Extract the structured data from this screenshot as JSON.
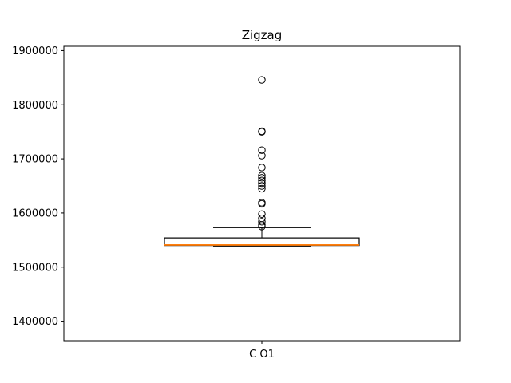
{
  "chart_data": {
    "type": "box",
    "title": "Zigzag",
    "xlabel": "",
    "ylabel": "",
    "categories": [
      "C O1"
    ],
    "ylim": [
      1364000,
      1908000
    ],
    "yticks": [
      1400000,
      1500000,
      1600000,
      1700000,
      1800000,
      1900000
    ],
    "ytick_labels": [
      "1400000",
      "1500000",
      "1600000",
      "1700000",
      "1800000",
      "1900000"
    ],
    "box": {
      "whisker_low": 1539000,
      "q1": 1540000,
      "median": 1541000,
      "q3": 1554000,
      "whisker_high": 1573000
    },
    "outliers": [
      1846000,
      1751000,
      1750000,
      1716000,
      1706000,
      1684000,
      1669000,
      1665000,
      1660000,
      1655000,
      1650000,
      1645000,
      1619000,
      1617000,
      1598000,
      1590000,
      1584000,
      1578000,
      1575000
    ],
    "colors": {
      "median": "#ff7f0e",
      "box": "#000000"
    },
    "grid": false
  }
}
